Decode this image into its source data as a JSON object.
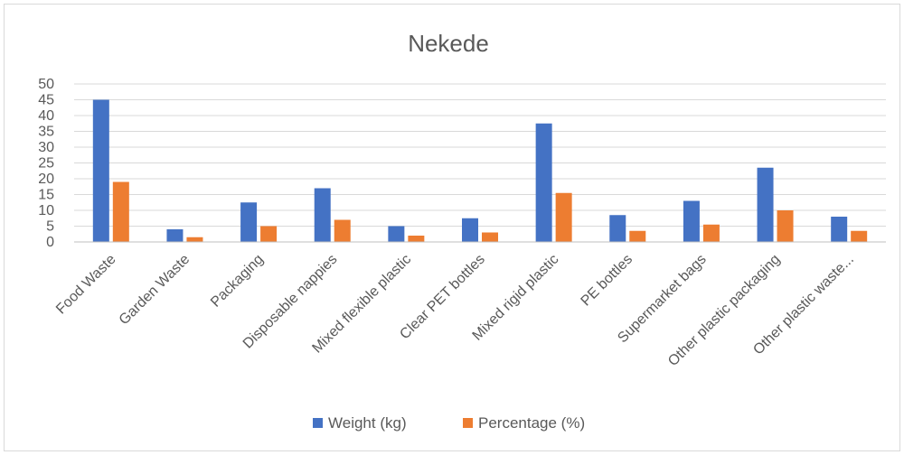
{
  "chart_data": {
    "type": "bar",
    "title": "Nekede",
    "categories": [
      "Food Waste",
      "Garden Waste",
      "Packaging",
      "Disposable nappies",
      "Mixed flexible plastic",
      "Clear PET bottles",
      "Mixed rigid plastic",
      "PE bottles",
      "Supermarket bags",
      "Other plastic packaging",
      "Other plastic waste..."
    ],
    "series": [
      {
        "name": "Weight (kg)",
        "color": "#4472c4",
        "values": [
          45,
          4,
          12.5,
          17,
          5,
          7.5,
          37.5,
          8.5,
          13,
          23.5,
          8
        ]
      },
      {
        "name": "Percentage (%)",
        "color": "#ed7d31",
        "values": [
          19,
          1.5,
          5,
          7,
          2,
          3,
          15.5,
          3.5,
          5.5,
          10,
          3.5
        ]
      }
    ],
    "ylim": [
      0,
      50
    ],
    "yticks": [
      0,
      5,
      10,
      15,
      20,
      25,
      30,
      35,
      40,
      45,
      50
    ],
    "xlabel": "",
    "ylabel": "",
    "grid": true,
    "legend": "bottom"
  }
}
